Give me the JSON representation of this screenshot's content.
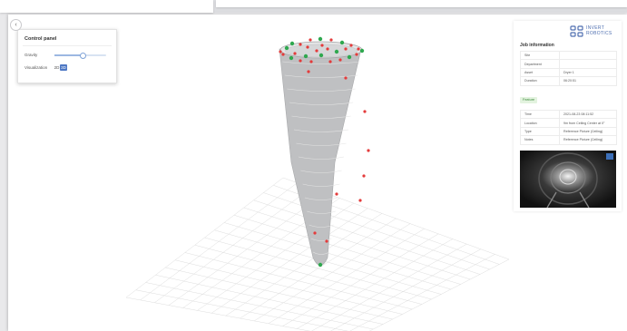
{
  "colors": {
    "accent": "#4e78c4",
    "marker_red": "#e43b3b",
    "marker_green": "#2fa84f",
    "logo": "#4f6fb0"
  },
  "viewer": {
    "back_icon": "chevron-left-icon",
    "back_glyph": "‹"
  },
  "control_panel": {
    "title": "Control panel",
    "gravity_label": "Gravity",
    "gravity_value": 0.55,
    "visualization_label": "Visualization",
    "vis_options": [
      "2D",
      "3D"
    ],
    "vis_selected": "3D"
  },
  "job_info": {
    "logo_text": "INVERT\nROBOTICS",
    "logo_icon": "invert-robotics-logo-icon",
    "title": "Job information",
    "rows": [
      {
        "label": "Site",
        "value": ""
      },
      {
        "label": "Department",
        "value": ""
      },
      {
        "label": "Asset",
        "value": "Dryer 1"
      },
      {
        "label": "Duration",
        "value": "06:20:51"
      }
    ],
    "feature_badge": "Feature",
    "feature_rows": [
      {
        "label": "Time",
        "value": "2021-08-23 08:11:52"
      },
      {
        "label": "Location",
        "value": "9m from Ceiling Center at 0°"
      },
      {
        "label": "Type",
        "value": "Reference Picture (Ceiling)"
      },
      {
        "label": "Notes",
        "value": "Reference Picture (Ceiling)"
      }
    ],
    "camera_feed": "inspection-camera-image"
  }
}
